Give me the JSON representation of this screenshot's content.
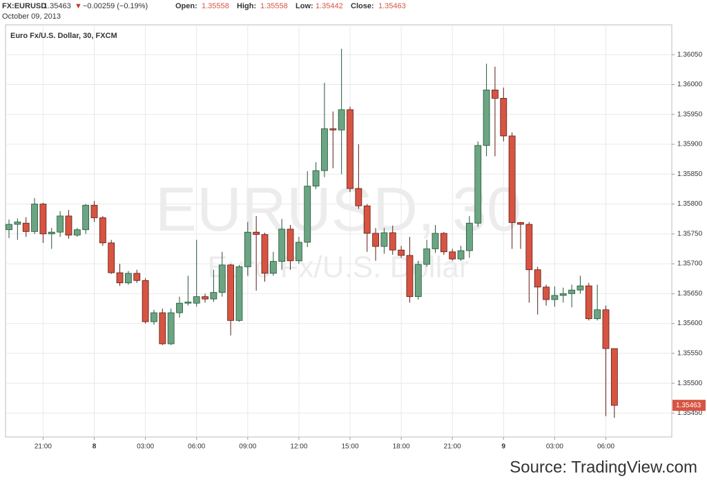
{
  "header": {
    "symbol": "FX:EURUSD",
    "last": "1.35463",
    "arrow": "▼",
    "change": "−0.00259 (−0.19%)",
    "open_label": "Open:",
    "open": "1.35558",
    "high_label": "High:",
    "high": "1.35558",
    "low_label": "Low:",
    "low": "1.35442",
    "close_label": "Close:",
    "close": "1.35463",
    "date": "October 09, 2013"
  },
  "chart_data": {
    "type": "candlestick",
    "title": "Euro Fx/U.S. Dollar, 30, FXCM",
    "watermark": "EURUSD, 30",
    "watermark_subtitle": "Euro Fx/U.S. Dollar",
    "source": "Source: TradingView.com",
    "last_price_label": "1.35463",
    "up_color": "#6ba583",
    "up_border": "#225437",
    "down_color": "#d75442",
    "down_border": "#5b1a13",
    "grid": true,
    "categories": [
      null,
      null,
      null,
      null,
      "21:00",
      null,
      null,
      null,
      null,
      null,
      "8",
      null,
      null,
      null,
      null,
      null,
      "03:00",
      null,
      null,
      null,
      null,
      null,
      "06:00",
      null,
      null,
      null,
      null,
      null,
      "09:00",
      null,
      null,
      null,
      null,
      null,
      "12:00",
      null,
      null,
      null,
      null,
      null,
      "15:00",
      null,
      null,
      null,
      null,
      null,
      "18:00",
      null,
      null,
      null,
      null,
      null,
      "21:00",
      null,
      null,
      null,
      null,
      null,
      "9",
      null,
      null,
      null,
      null,
      null,
      "03:00",
      null,
      null,
      null,
      null,
      null,
      "06:00",
      null
    ],
    "open": [
      1.35757,
      1.35766,
      1.35768,
      1.35754,
      1.358,
      1.3575,
      1.35753,
      1.3578,
      1.35748,
      1.35757,
      1.35798,
      1.35777,
      1.35735,
      1.35685,
      1.35668,
      1.35684,
      1.35672,
      1.35603,
      1.35618,
      1.35566,
      1.35618,
      1.35634,
      1.35634,
      1.35645,
      1.35641,
      1.35652,
      1.35698,
      1.35605,
      1.35695,
      1.35753,
      1.35749,
      1.35684,
      1.35704,
      1.35758,
      1.35705,
      1.35736,
      1.3583,
      1.35856,
      1.35926,
      1.35924,
      1.35958,
      1.35826,
      1.35797,
      1.35751,
      1.35729,
      1.35752,
      1.35723,
      1.35714,
      1.35645,
      1.35699,
      1.35725,
      1.35751,
      1.3572,
      1.35708,
      1.35722,
      1.35768,
      1.35898,
      1.35991,
      1.35977,
      1.35914,
      1.35769,
      1.35766,
      1.3569,
      1.35661,
      1.3564,
      1.35647,
      1.3565,
      1.35656,
      1.35663,
      1.35608,
      1.35623,
      1.35558
    ],
    "high": [
      1.35774,
      1.35776,
      1.35778,
      1.3581,
      1.35802,
      1.3576,
      1.35788,
      1.3579,
      1.3576,
      1.358,
      1.35805,
      1.3578,
      1.3574,
      1.357,
      1.35688,
      1.3569,
      1.35676,
      1.35623,
      1.35625,
      1.35625,
      1.35645,
      1.3568,
      1.3574,
      1.3565,
      1.3569,
      1.3572,
      1.357,
      1.35698,
      1.3577,
      1.3578,
      1.35752,
      1.3572,
      1.35775,
      1.35765,
      1.35745,
      1.35855,
      1.3587,
      1.36003,
      1.35955,
      1.3606,
      1.35963,
      1.359,
      1.358,
      1.3576,
      1.3576,
      1.35764,
      1.3573,
      1.35745,
      1.35705,
      1.3574,
      1.35765,
      1.35753,
      1.35725,
      1.3573,
      1.3578,
      1.35905,
      1.36035,
      1.3603,
      1.35995,
      1.3592,
      1.3577,
      1.3577,
      1.35695,
      1.35665,
      1.35662,
      1.3566,
      1.35665,
      1.3568,
      1.35668,
      1.35665,
      1.3563,
      1.35558
    ],
    "low": [
      1.35743,
      1.3574,
      1.35745,
      1.3575,
      1.35735,
      1.35725,
      1.35745,
      1.35742,
      1.35745,
      1.3575,
      1.3577,
      1.3573,
      1.35683,
      1.35663,
      1.35665,
      1.35668,
      1.356,
      1.35598,
      1.35564,
      1.35564,
      1.3561,
      1.3563,
      1.35628,
      1.35635,
      1.35636,
      1.35645,
      1.3558,
      1.35603,
      1.3568,
      1.35655,
      1.3567,
      1.3568,
      1.3569,
      1.3569,
      1.357,
      1.35728,
      1.35825,
      1.35845,
      1.3586,
      1.3585,
      1.3582,
      1.35792,
      1.3572,
      1.35705,
      1.35717,
      1.35715,
      1.3571,
      1.35635,
      1.3564,
      1.35695,
      1.35718,
      1.35715,
      1.35705,
      1.35705,
      1.3571,
      1.35762,
      1.3588,
      1.3588,
      1.35905,
      1.35725,
      1.35725,
      1.35635,
      1.35615,
      1.3563,
      1.35628,
      1.35635,
      1.35627,
      1.3565,
      1.35605,
      1.35605,
      1.35445,
      1.35442
    ],
    "close": [
      1.35766,
      1.3577,
      1.35754,
      1.358,
      1.3575,
      1.35753,
      1.3578,
      1.35748,
      1.35757,
      1.35798,
      1.35777,
      1.35735,
      1.35685,
      1.35668,
      1.35684,
      1.35672,
      1.35603,
      1.35618,
      1.35566,
      1.35618,
      1.35634,
      1.35636,
      1.35645,
      1.35641,
      1.35652,
      1.35698,
      1.35605,
      1.35695,
      1.35753,
      1.35749,
      1.35684,
      1.35704,
      1.35758,
      1.35705,
      1.35736,
      1.3583,
      1.35856,
      1.35926,
      1.35924,
      1.35958,
      1.35826,
      1.35797,
      1.35751,
      1.35729,
      1.35752,
      1.35723,
      1.35714,
      1.35645,
      1.35699,
      1.35725,
      1.35751,
      1.3572,
      1.35708,
      1.35722,
      1.35768,
      1.35898,
      1.35991,
      1.35977,
      1.35914,
      1.35769,
      1.35766,
      1.3569,
      1.35661,
      1.3564,
      1.35647,
      1.3565,
      1.35656,
      1.35663,
      1.35608,
      1.35623,
      1.35558,
      1.35463
    ],
    "ylim": [
      1.3541,
      1.361
    ],
    "yticks": [
      {
        "value": 1.3545,
        "label": "1.35450"
      },
      {
        "value": 1.355,
        "label": "1.35500"
      },
      {
        "value": 1.3555,
        "label": "1.35550"
      },
      {
        "value": 1.356,
        "label": "1.35600"
      },
      {
        "value": 1.3565,
        "label": "1.35650"
      },
      {
        "value": 1.357,
        "label": "1.35700"
      },
      {
        "value": 1.3575,
        "label": "1.35750"
      },
      {
        "value": 1.358,
        "label": "1.35800"
      },
      {
        "value": 1.3585,
        "label": "1.35850"
      },
      {
        "value": 1.359,
        "label": "1.35900"
      },
      {
        "value": 1.3595,
        "label": "1.35950"
      },
      {
        "value": 1.36,
        "label": "1.36000"
      },
      {
        "value": 1.3605,
        "label": "1.36050"
      }
    ]
  }
}
